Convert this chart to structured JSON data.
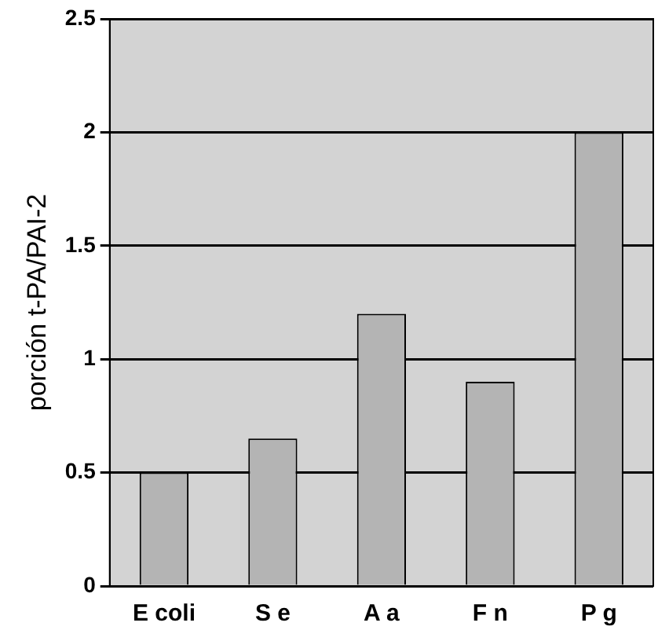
{
  "chart_data": {
    "type": "bar",
    "ylabel": "porción t-PA/PAI-2",
    "categories": [
      "E coli",
      "S e",
      "A a",
      "F n",
      "P g"
    ],
    "values": [
      0.5,
      0.65,
      1.2,
      0.9,
      2.0
    ],
    "color": "#b4b4b4",
    "ylim": [
      0,
      2.5
    ],
    "yticks": [
      0,
      0.5,
      1,
      1.5,
      2,
      2.5
    ],
    "grid": "y"
  }
}
